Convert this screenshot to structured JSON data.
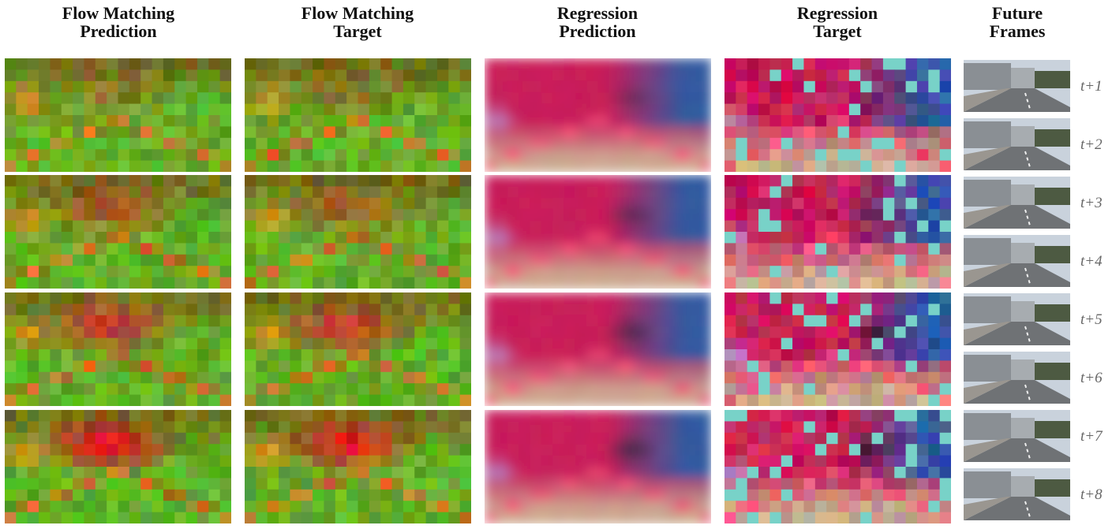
{
  "columns": [
    {
      "lines": [
        "Flow Matching",
        "Prediction"
      ]
    },
    {
      "lines": [
        "Flow Matching",
        "Target"
      ]
    },
    {
      "lines": [
        "Regression",
        "Prediction"
      ]
    },
    {
      "lines": [
        "Regression",
        "Target"
      ]
    },
    {
      "lines": [
        "Future",
        "Frames"
      ]
    }
  ],
  "frames": [
    "t+1",
    "t+2",
    "t+3",
    "t+4",
    "t+5",
    "t+6",
    "t+7",
    "t+8"
  ]
}
